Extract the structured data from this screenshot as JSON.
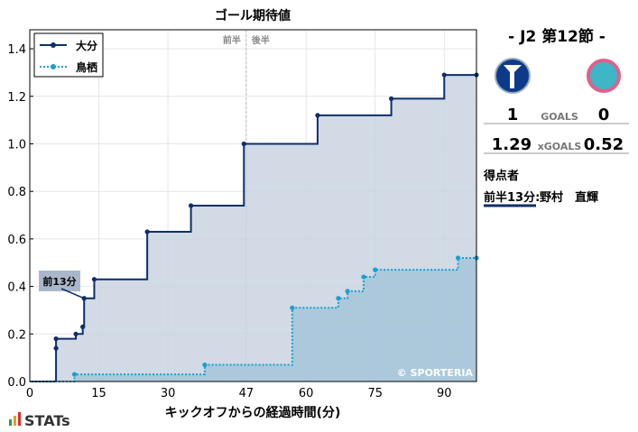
{
  "chart_data": {
    "type": "step",
    "title": "ゴール期待値",
    "x_label": "キックオフからの経過時間(分)",
    "xlim": [
      0,
      97
    ],
    "ylim": [
      0,
      1.48
    ],
    "xticks": [
      0,
      15,
      30,
      47,
      60,
      75,
      90
    ],
    "yticks": [
      {
        "value": 0,
        "label": "0.0"
      },
      {
        "value": 0.2,
        "label": "0.2"
      },
      {
        "value": 0.4,
        "label": "0.4"
      },
      {
        "value": 0.6,
        "label": "0.6"
      },
      {
        "value": 0.8,
        "label": "0.8"
      },
      {
        "value": 1,
        "label": "1.0"
      },
      {
        "value": 1.2,
        "label": "1.2"
      },
      {
        "value": 1.4,
        "label": "1.4"
      }
    ],
    "grid": true,
    "legend": "upper left",
    "half_time": 47,
    "half_labels": [
      "前半",
      "後半"
    ],
    "watermark": "© SPORTERIA",
    "annotation": {
      "text": "前13分",
      "x": 11.8,
      "y": 0.35
    },
    "series": [
      {
        "name": "大分",
        "color": "#0d2f6b",
        "fill": "#c9d3e0",
        "dash": false,
        "x": [
          5.7,
          5.7,
          10,
          11.5,
          11.8,
          14,
          25.5,
          35,
          46.5,
          62.5,
          78.5,
          90,
          97
        ],
        "values": [
          0.14,
          0.18,
          0.2,
          0.23,
          0.35,
          0.43,
          0.63,
          0.74,
          1.0,
          1.12,
          1.19,
          1.29,
          1.29
        ]
      },
      {
        "name": "鳥栖",
        "color": "#1a9fd0",
        "fill": "#a6c6da",
        "dash": true,
        "x": [
          9.7,
          38,
          57,
          67,
          69,
          72.5,
          75,
          93,
          97
        ],
        "values": [
          0.03,
          0.07,
          0.31,
          0.35,
          0.38,
          0.44,
          0.47,
          0.52,
          0.52
        ]
      }
    ]
  },
  "match": {
    "round": "- J2 第12節 -",
    "home_goals": "1",
    "goals_label": "GOALS",
    "away_goals": "0",
    "home_xg": "1.29",
    "xg_label": "xGOALS",
    "away_xg": "0.52",
    "scorers_title": "得点者",
    "scorer_time": "前半13分:",
    "scorer_name": "野村　直輝"
  },
  "brand": "STATs"
}
